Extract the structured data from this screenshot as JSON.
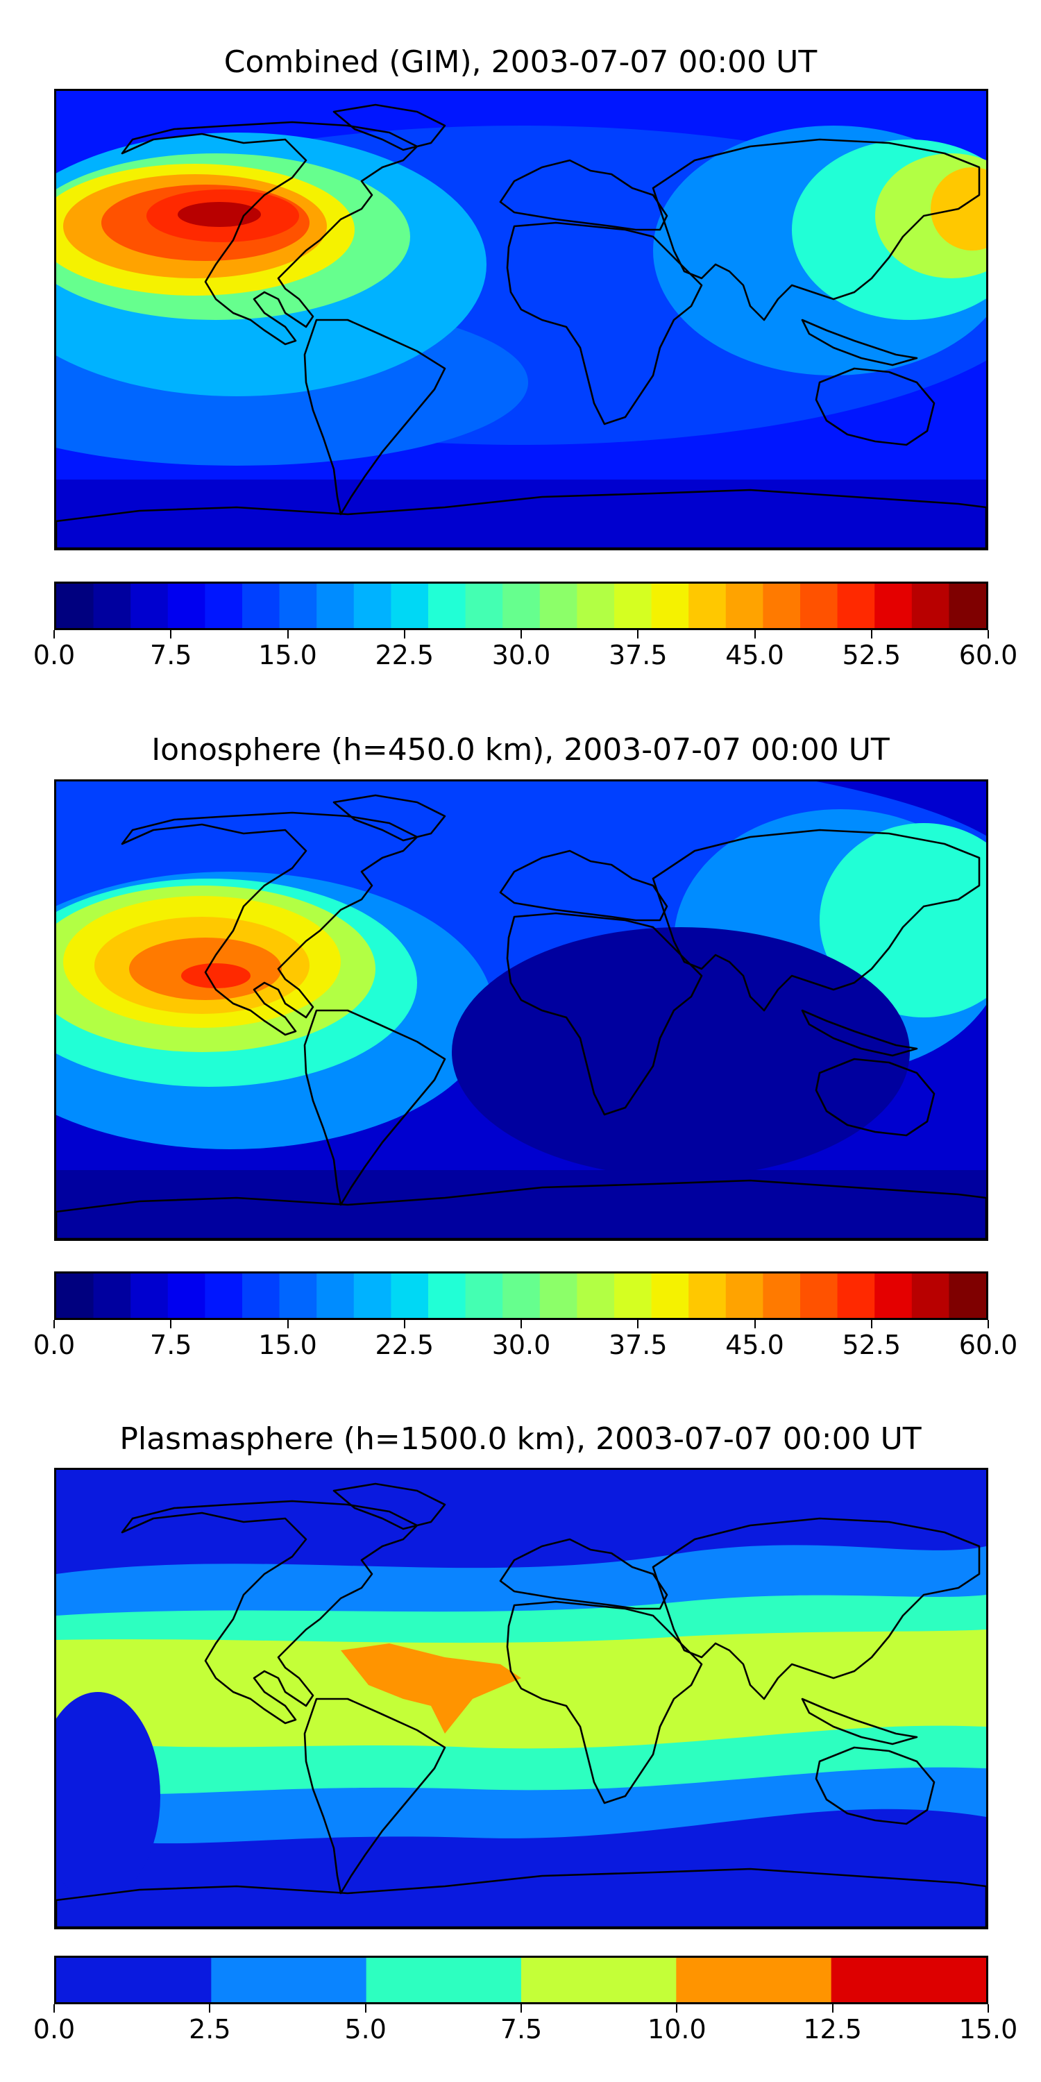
{
  "panels": [
    {
      "title": "Combined (GIM), 2003-07-07 00:00 UT",
      "bands": [
        "#00007f",
        "#00009f",
        "#0000cf",
        "#0000f0",
        "#0016ff",
        "#0040ff",
        "#0066ff",
        "#008cff",
        "#00b2ff",
        "#00d8f5",
        "#21ffd6",
        "#44ffb2",
        "#66ff8e",
        "#8cff69",
        "#b2ff44",
        "#d5ff21",
        "#f5f200",
        "#ffc800",
        "#ffa300",
        "#ff7a00",
        "#ff5200",
        "#ff2900",
        "#e40000",
        "#b80000",
        "#7f0000"
      ],
      "colorbar_ticks": [
        "0.0",
        "7.5",
        "15.0",
        "22.5",
        "30.0",
        "37.5",
        "45.0",
        "52.5",
        "60.0"
      ]
    },
    {
      "title": "Ionosphere  (h=450.0 km), 2003-07-07 00:00 UT",
      "bands": [
        "#00007f",
        "#00009f",
        "#0000cf",
        "#0000f0",
        "#0016ff",
        "#0040ff",
        "#0066ff",
        "#008cff",
        "#00b2ff",
        "#00d8f5",
        "#21ffd6",
        "#44ffb2",
        "#66ff8e",
        "#8cff69",
        "#b2ff44",
        "#d5ff21",
        "#f5f200",
        "#ffc800",
        "#ffa300",
        "#ff7a00",
        "#ff5200",
        "#ff2900",
        "#e40000",
        "#b80000",
        "#7f0000"
      ],
      "colorbar_ticks": [
        "0.0",
        "7.5",
        "15.0",
        "22.5",
        "30.0",
        "37.5",
        "45.0",
        "52.5",
        "60.0"
      ]
    },
    {
      "title": "Plasmasphere (h=1500.0 km), 2003-07-07 00:00 UT",
      "bands": [
        "#0a1adf",
        "#0a84ff",
        "#2dffc0",
        "#c4ff38",
        "#ff9400",
        "#dd0000"
      ],
      "colorbar_ticks": [
        "0.0",
        "2.5",
        "5.0",
        "7.5",
        "10.0",
        "12.5",
        "15.0"
      ]
    }
  ]
}
